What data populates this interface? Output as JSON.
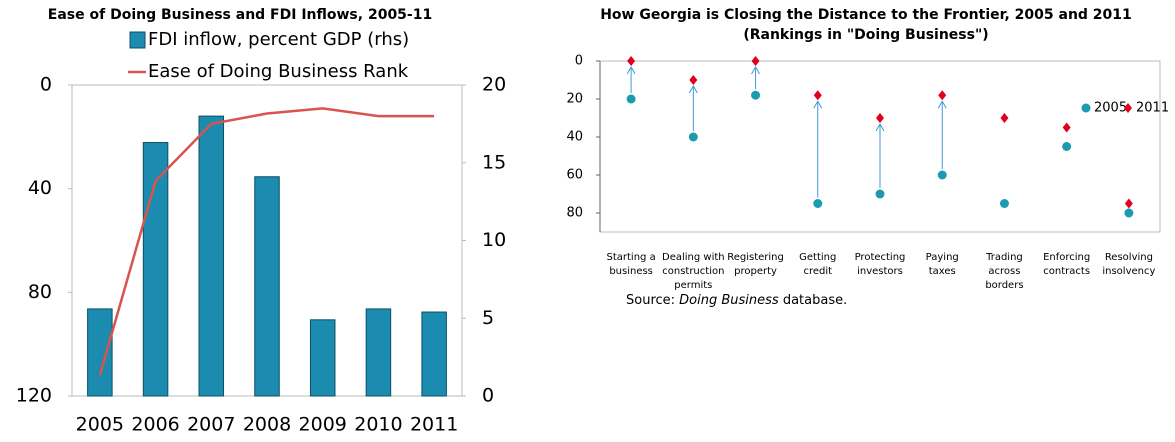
{
  "chart_data": [
    {
      "type": "bar_line",
      "title": "Ease of Doing Business and FDI Inflows, 2005-11",
      "categories": [
        "2005",
        "2006",
        "2007",
        "2008",
        "2009",
        "2010",
        "2011"
      ],
      "series": [
        {
          "name": "FDI inflow, percent GDP (rhs)",
          "type": "bar",
          "axis": "y2",
          "color": "#1b8bb0",
          "values": [
            5.6,
            16.3,
            18.0,
            14.1,
            4.9,
            5.6,
            5.4
          ]
        },
        {
          "name": "Ease of Doing Business Rank",
          "type": "line",
          "color": "#d9534f",
          "values": [
            112,
            37,
            15,
            11,
            9,
            12,
            12
          ]
        }
      ],
      "ylim": [
        0,
        120
      ],
      "yticks": [
        0,
        40,
        80,
        120
      ],
      "y_reversed": true,
      "y2lim": [
        0,
        20
      ],
      "y2ticks": [
        0,
        5,
        10,
        15,
        20
      ]
    },
    {
      "type": "dot",
      "title": [
        "How Georgia is Closing the Distance to the Frontier, 2005 and 2011",
        "(Rankings in \"Doing Business\")"
      ],
      "categories": [
        [
          "Starting a",
          "business"
        ],
        [
          "Dealing with",
          "construction",
          "permits"
        ],
        [
          "Registering",
          "property"
        ],
        [
          "Getting",
          "credit"
        ],
        [
          "Protecting",
          "investors"
        ],
        [
          "Paying",
          "taxes"
        ],
        [
          "Trading",
          "across",
          "borders"
        ],
        [
          "Enforcing",
          "contracts"
        ],
        [
          "Resolving",
          "insolvency"
        ]
      ],
      "series": [
        {
          "name": "2005",
          "marker": "circle",
          "color": "#1a9bb0",
          "values": [
            20,
            40,
            18,
            75,
            70,
            60,
            75,
            45,
            80
          ]
        },
        {
          "name": "2011",
          "marker": "diamond",
          "color": "#e0001b",
          "values": [
            0,
            10,
            0,
            18,
            30,
            18,
            30,
            35,
            75
          ]
        }
      ],
      "ylim": [
        0,
        90
      ],
      "yticks": [
        0,
        20,
        40,
        60,
        80
      ],
      "y_reversed": true,
      "legend": "upper right",
      "source": {
        "prefix": "Source:",
        "italic": "Doing Business",
        "suffix": "database."
      }
    }
  ]
}
